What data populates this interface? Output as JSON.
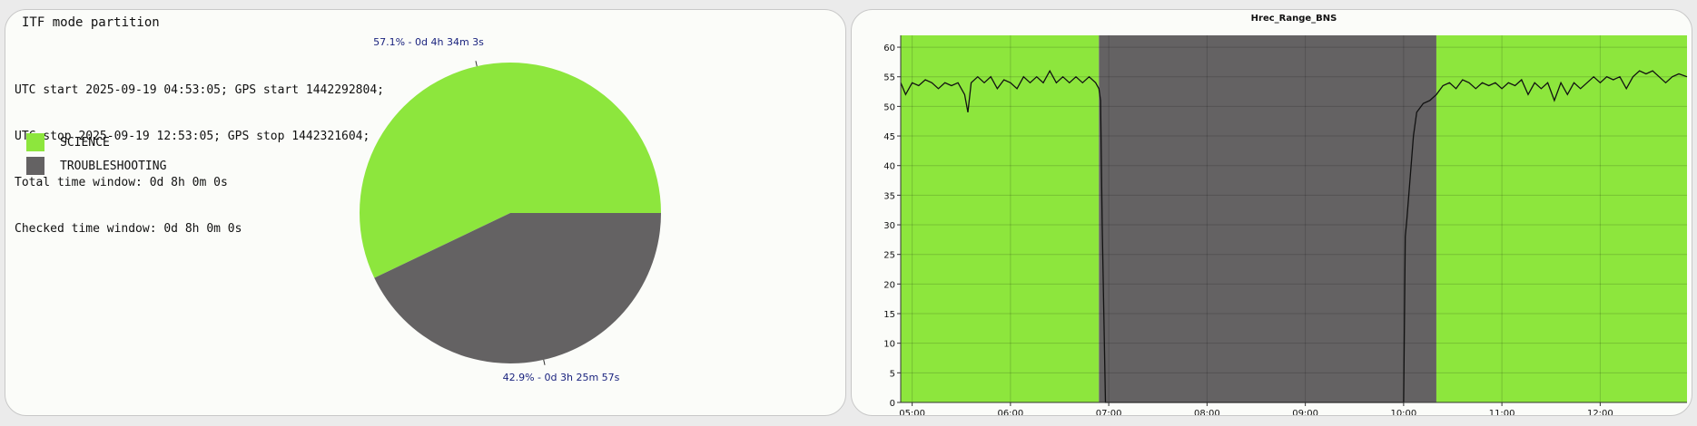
{
  "left_panel": {
    "title": "ITF mode partition",
    "info_lines": [
      "UTC start 2025-09-19 04:53:05; GPS start 1442292804;",
      "UTC stop 2025-09-19 12:53:05; GPS stop 1442321604;",
      "Total time window: 0d 8h 0m 0s",
      "Checked time window: 0d 8h 0m 0s"
    ],
    "legend": [
      {
        "label": "SCIENCE",
        "color": "#8de63d"
      },
      {
        "label": "TROUBLESHOOTING",
        "color": "#646263"
      }
    ]
  },
  "chart_data": [
    {
      "type": "pie",
      "title": "",
      "slices": [
        {
          "name": "SCIENCE",
          "value": 57.1,
          "label": "57.1% - 0d 4h 34m 3s",
          "color": "#8de63d"
        },
        {
          "name": "TROUBLESHOOTING",
          "value": 42.9,
          "label": "42.9% - 0d 3h 25m 57s",
          "color": "#646263"
        }
      ],
      "label_color": "#1a237e"
    },
    {
      "type": "line",
      "title": "Hrec_Range_BNS",
      "xlabel": "",
      "ylabel": "",
      "x_range": [
        "04:53",
        "12:53"
      ],
      "ylim": [
        0,
        62
      ],
      "x_ticks": [
        "05:00",
        "06:00",
        "07:00",
        "08:00",
        "09:00",
        "10:00",
        "11:00",
        "12:00"
      ],
      "y_ticks": [
        0,
        5,
        10,
        15,
        20,
        25,
        30,
        35,
        40,
        45,
        50,
        55,
        60
      ],
      "grid": true,
      "background_segments": [
        {
          "start": "04:53",
          "end": "06:54",
          "mode": "SCIENCE",
          "color": "#8de63d"
        },
        {
          "start": "06:54",
          "end": "10:20",
          "mode": "TROUBLESHOOTING",
          "color": "#646263"
        },
        {
          "start": "10:20",
          "end": "12:53",
          "mode": "SCIENCE",
          "color": "#8de63d"
        }
      ],
      "series": [
        {
          "color": "#111111",
          "points": [
            [
              "04:53",
              54
            ],
            [
              "04:56",
              52
            ],
            [
              "05:00",
              54
            ],
            [
              "05:04",
              53.5
            ],
            [
              "05:08",
              54.5
            ],
            [
              "05:12",
              54
            ],
            [
              "05:16",
              53
            ],
            [
              "05:20",
              54
            ],
            [
              "05:24",
              53.5
            ],
            [
              "05:28",
              54
            ],
            [
              "05:32",
              52
            ],
            [
              "05:34",
              49
            ],
            [
              "05:36",
              54
            ],
            [
              "05:40",
              55
            ],
            [
              "05:44",
              54
            ],
            [
              "05:48",
              55
            ],
            [
              "05:52",
              53
            ],
            [
              "05:56",
              54.5
            ],
            [
              "06:00",
              54
            ],
            [
              "06:04",
              53
            ],
            [
              "06:08",
              55
            ],
            [
              "06:12",
              54
            ],
            [
              "06:16",
              55
            ],
            [
              "06:20",
              54
            ],
            [
              "06:24",
              56
            ],
            [
              "06:28",
              54
            ],
            [
              "06:32",
              55
            ],
            [
              "06:36",
              54
            ],
            [
              "06:40",
              55
            ],
            [
              "06:44",
              54
            ],
            [
              "06:48",
              55
            ],
            [
              "06:52",
              54
            ],
            [
              "06:54",
              53
            ],
            [
              "06:55",
              51
            ],
            [
              "06:56",
              30
            ],
            [
              "06:58",
              0
            ],
            [
              "10:00",
              0
            ],
            [
              "10:01",
              28
            ],
            [
              "10:02",
              31
            ],
            [
              "10:04",
              38
            ],
            [
              "10:06",
              45
            ],
            [
              "10:08",
              49
            ],
            [
              "10:12",
              50.5
            ],
            [
              "10:16",
              51
            ],
            [
              "10:20",
              52
            ],
            [
              "10:24",
              53.5
            ],
            [
              "10:28",
              54
            ],
            [
              "10:32",
              53
            ],
            [
              "10:36",
              54.5
            ],
            [
              "10:40",
              54
            ],
            [
              "10:44",
              53
            ],
            [
              "10:48",
              54
            ],
            [
              "10:52",
              53.5
            ],
            [
              "10:56",
              54
            ],
            [
              "11:00",
              53
            ],
            [
              "11:04",
              54
            ],
            [
              "11:08",
              53.5
            ],
            [
              "11:12",
              54.5
            ],
            [
              "11:16",
              52
            ],
            [
              "11:20",
              54
            ],
            [
              "11:24",
              53
            ],
            [
              "11:28",
              54
            ],
            [
              "11:32",
              51
            ],
            [
              "11:36",
              54
            ],
            [
              "11:40",
              52
            ],
            [
              "11:44",
              54
            ],
            [
              "11:48",
              53
            ],
            [
              "11:52",
              54
            ],
            [
              "11:56",
              55
            ],
            [
              "12:00",
              54
            ],
            [
              "12:04",
              55
            ],
            [
              "12:08",
              54.5
            ],
            [
              "12:12",
              55
            ],
            [
              "12:16",
              53
            ],
            [
              "12:20",
              55
            ],
            [
              "12:24",
              56
            ],
            [
              "12:28",
              55.5
            ],
            [
              "12:32",
              56
            ],
            [
              "12:36",
              55
            ],
            [
              "12:40",
              54
            ],
            [
              "12:44",
              55
            ],
            [
              "12:48",
              55.5
            ],
            [
              "12:53",
              55
            ]
          ]
        }
      ]
    }
  ]
}
